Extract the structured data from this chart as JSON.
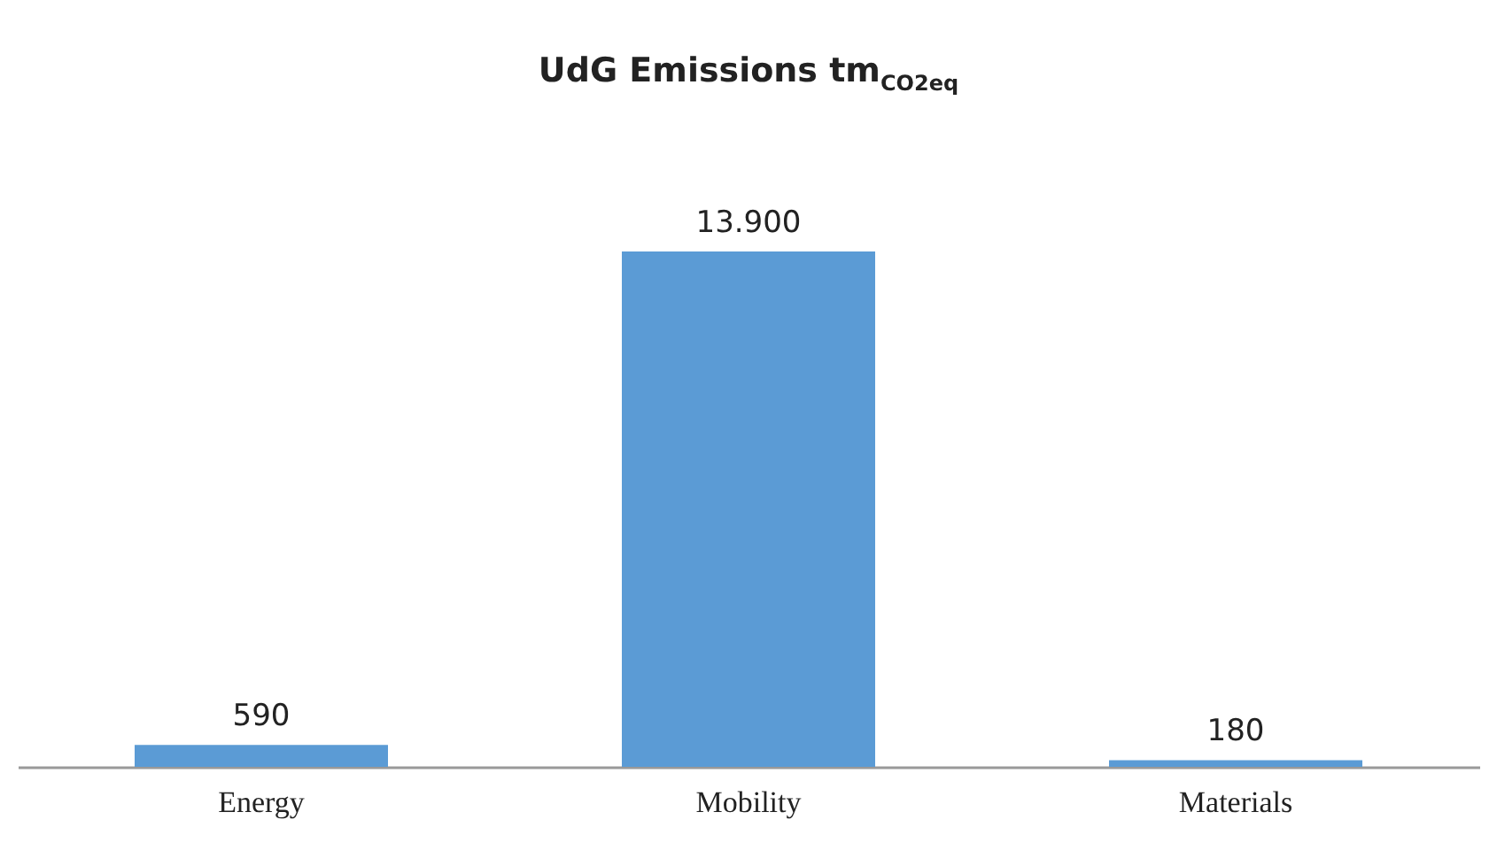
{
  "chart_data": {
    "type": "bar",
    "title": "UdG Emissions tm$_{CO2eq}$",
    "categories": [
      "Energy",
      "Mobility",
      "Materials"
    ],
    "values": [
      590,
      13900,
      180
    ],
    "value_labels": [
      "590",
      "13.900",
      "180"
    ],
    "color": "#5b9bd5"
  }
}
